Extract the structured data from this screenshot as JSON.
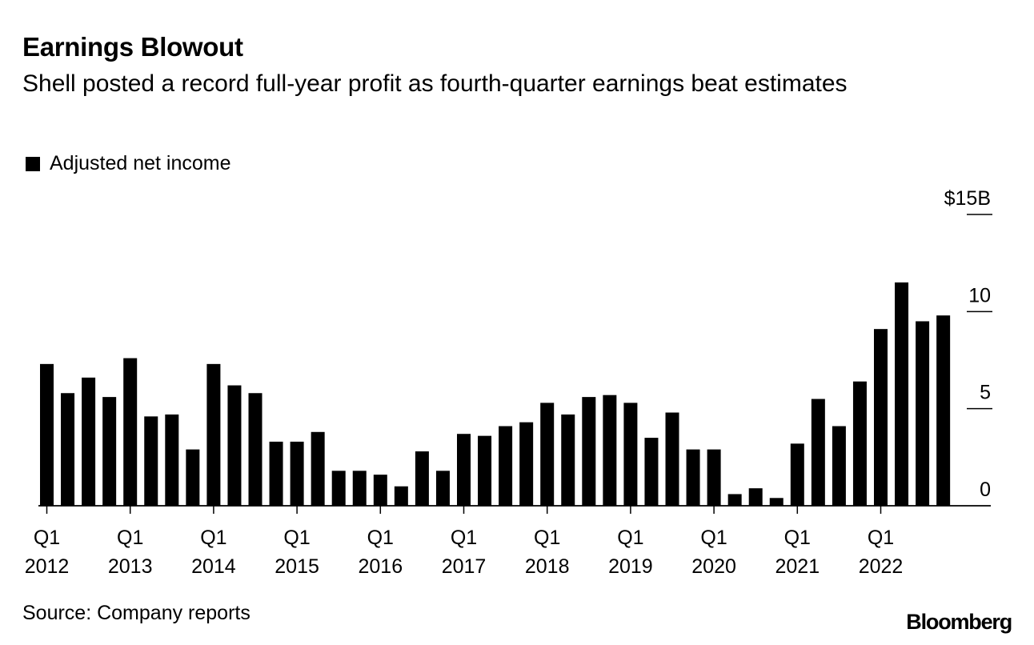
{
  "header": {
    "title": "Earnings Blowout",
    "subtitle": "Shell posted a record full-year profit as fourth-quarter earnings beat estimates"
  },
  "legend": {
    "label": "Adjusted net income",
    "color": "#000000"
  },
  "footer": {
    "source": "Source: Company reports",
    "brand": "Bloomberg"
  },
  "chart_data": {
    "type": "bar",
    "title": "Earnings Blowout",
    "subtitle": "Shell posted a record full-year profit as fourth-quarter earnings beat estimates",
    "xlabel": "",
    "ylabel": "",
    "ylim": [
      0,
      15
    ],
    "y_ticks": [
      {
        "value": 15,
        "label": "$15B"
      },
      {
        "value": 10,
        "label": "10"
      },
      {
        "value": 5,
        "label": "5"
      },
      {
        "value": 0,
        "label": "0"
      }
    ],
    "x_tick_labels": [
      {
        "index": 0,
        "quarter": "Q1",
        "year": "2012"
      },
      {
        "index": 4,
        "quarter": "Q1",
        "year": "2013"
      },
      {
        "index": 8,
        "quarter": "Q1",
        "year": "2014"
      },
      {
        "index": 12,
        "quarter": "Q1",
        "year": "2015"
      },
      {
        "index": 16,
        "quarter": "Q1",
        "year": "2016"
      },
      {
        "index": 20,
        "quarter": "Q1",
        "year": "2017"
      },
      {
        "index": 24,
        "quarter": "Q1",
        "year": "2018"
      },
      {
        "index": 28,
        "quarter": "Q1",
        "year": "2019"
      },
      {
        "index": 32,
        "quarter": "Q1",
        "year": "2020"
      },
      {
        "index": 36,
        "quarter": "Q1",
        "year": "2021"
      },
      {
        "index": 40,
        "quarter": "Q1",
        "year": "2022"
      }
    ],
    "categories": [
      "Q1 2012",
      "Q2 2012",
      "Q3 2012",
      "Q4 2012",
      "Q1 2013",
      "Q2 2013",
      "Q3 2013",
      "Q4 2013",
      "Q1 2014",
      "Q2 2014",
      "Q3 2014",
      "Q4 2014",
      "Q1 2015",
      "Q2 2015",
      "Q3 2015",
      "Q4 2015",
      "Q1 2016",
      "Q2 2016",
      "Q3 2016",
      "Q4 2016",
      "Q1 2017",
      "Q2 2017",
      "Q3 2017",
      "Q4 2017",
      "Q1 2018",
      "Q2 2018",
      "Q3 2018",
      "Q4 2018",
      "Q1 2019",
      "Q2 2019",
      "Q3 2019",
      "Q4 2019",
      "Q1 2020",
      "Q2 2020",
      "Q3 2020",
      "Q4 2020",
      "Q1 2021",
      "Q2 2021",
      "Q3 2021",
      "Q4 2021",
      "Q1 2022",
      "Q2 2022",
      "Q3 2022",
      "Q4 2022"
    ],
    "series": [
      {
        "name": "Adjusted net income",
        "color": "#000000",
        "values": [
          7.3,
          5.8,
          6.6,
          5.6,
          7.6,
          4.6,
          4.7,
          2.9,
          7.3,
          6.2,
          5.8,
          3.3,
          3.3,
          3.8,
          1.8,
          1.8,
          1.6,
          1.0,
          2.8,
          1.8,
          3.7,
          3.6,
          4.1,
          4.3,
          5.3,
          4.7,
          5.6,
          5.7,
          5.3,
          3.5,
          4.8,
          2.9,
          2.9,
          0.6,
          0.9,
          0.4,
          3.2,
          5.5,
          4.1,
          6.4,
          9.1,
          11.5,
          9.5,
          9.8
        ]
      }
    ]
  }
}
